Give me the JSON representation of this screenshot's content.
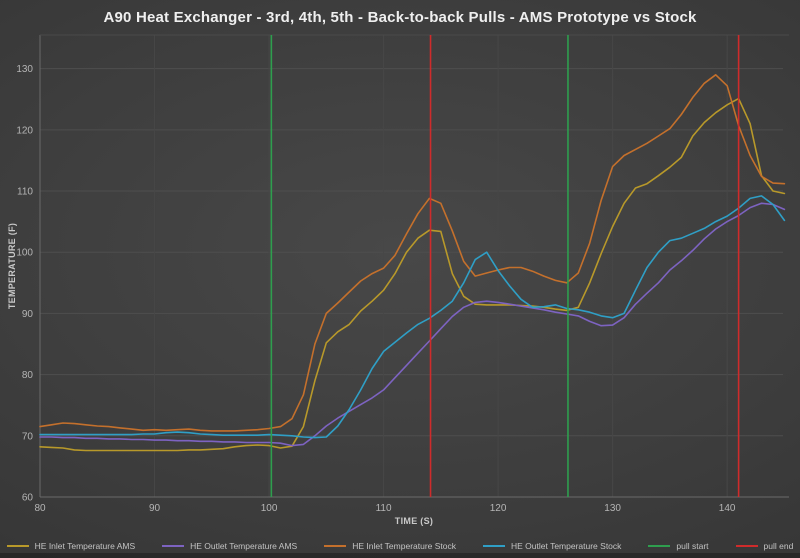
{
  "chart_data": {
    "type": "line",
    "title": "A90 Heat Exchanger - 3rd, 4th, 5th - Back-to-back Pulls - AMS Prototype vs Stock",
    "xlabel": "TIME (S)",
    "ylabel": "TEMPERATURE (F)",
    "xlim": [
      80,
      145.4
    ],
    "ylim": [
      60,
      135.5
    ],
    "x_ticks": [
      80,
      90,
      100,
      110,
      120,
      130,
      140
    ],
    "y_ticks": [
      60,
      70,
      80,
      90,
      100,
      110,
      120,
      130
    ],
    "grid": true,
    "legend_position": "bottom",
    "background_color": "#3d3d3d",
    "grid_color": "#4e4e4e",
    "axis_color": "#6a6a6a",
    "x": [
      80,
      81,
      82,
      83,
      84,
      85,
      86,
      87,
      88,
      89,
      90,
      91,
      92,
      93,
      94,
      95,
      96,
      97,
      98,
      99,
      100,
      101,
      102,
      103,
      104,
      105,
      106,
      107,
      108,
      109,
      110,
      111,
      112,
      113,
      114,
      115,
      116,
      117,
      118,
      119,
      120,
      121,
      122,
      123,
      124,
      125,
      126,
      127,
      128,
      129,
      130,
      131,
      132,
      133,
      134,
      135,
      136,
      137,
      138,
      139,
      140,
      141,
      142,
      143,
      144,
      145
    ],
    "series": [
      {
        "name": "HE Inlet Temperature AMS",
        "color": "#b8992a",
        "values": [
          68.2,
          68.1,
          68.0,
          67.7,
          67.6,
          67.6,
          67.6,
          67.6,
          67.6,
          67.6,
          67.6,
          67.6,
          67.6,
          67.7,
          67.7,
          67.8,
          67.9,
          68.2,
          68.4,
          68.5,
          68.4,
          68.0,
          68.3,
          71.5,
          79.0,
          85.2,
          87.0,
          88.2,
          90.4,
          92.0,
          93.8,
          96.5,
          100.0,
          102.3,
          103.6,
          103.4,
          96.5,
          92.8,
          91.5,
          91.4,
          91.4,
          91.4,
          91.3,
          91.2,
          91.0,
          90.7,
          90.5,
          91.0,
          95.0,
          99.8,
          104.2,
          108.0,
          110.5,
          111.2,
          112.5,
          113.9,
          115.5,
          119.0,
          121.2,
          122.8,
          124.1,
          125.1,
          121.0,
          112.5,
          110.0,
          109.6
        ]
      },
      {
        "name": "HE Outlet Temperature AMS",
        "color": "#7d63c1",
        "values": [
          69.8,
          69.8,
          69.7,
          69.7,
          69.6,
          69.6,
          69.5,
          69.5,
          69.4,
          69.4,
          69.3,
          69.3,
          69.2,
          69.2,
          69.1,
          69.1,
          69.0,
          69.0,
          68.9,
          68.9,
          68.9,
          68.8,
          68.4,
          68.6,
          70.0,
          71.6,
          72.9,
          74.0,
          75.1,
          76.2,
          77.5,
          79.5,
          81.5,
          83.5,
          85.5,
          87.5,
          89.5,
          91.0,
          91.8,
          92.0,
          91.8,
          91.5,
          91.2,
          90.9,
          90.6,
          90.2,
          89.9,
          89.6,
          88.7,
          88.0,
          88.1,
          89.3,
          91.5,
          93.3,
          95.0,
          97.1,
          98.6,
          100.3,
          102.2,
          103.8,
          105.0,
          106.0,
          107.3,
          108.0,
          107.8,
          107.0
        ]
      },
      {
        "name": "HE Inlet Temperature Stock",
        "color": "#c4702c",
        "values": [
          71.5,
          71.8,
          72.1,
          72.0,
          71.8,
          71.6,
          71.5,
          71.3,
          71.1,
          70.9,
          71.0,
          70.9,
          71.0,
          71.1,
          70.9,
          70.8,
          70.8,
          70.8,
          70.9,
          71.0,
          71.2,
          71.5,
          72.8,
          76.7,
          85.0,
          90.0,
          91.7,
          93.5,
          95.3,
          96.5,
          97.4,
          99.5,
          103.0,
          106.3,
          108.8,
          108.0,
          103.5,
          98.5,
          96.1,
          96.6,
          97.1,
          97.5,
          97.5,
          96.9,
          96.1,
          95.4,
          95.0,
          96.6,
          101.5,
          108.5,
          114.0,
          115.8,
          116.8,
          117.8,
          119.0,
          120.2,
          122.5,
          125.3,
          127.6,
          129.0,
          127.2,
          120.7,
          115.8,
          112.4,
          111.3,
          111.2
        ]
      },
      {
        "name": "HE Outlet Temperature Stock",
        "color": "#2f9fc6",
        "values": [
          70.2,
          70.2,
          70.2,
          70.2,
          70.2,
          70.2,
          70.2,
          70.2,
          70.2,
          70.3,
          70.3,
          70.5,
          70.6,
          70.5,
          70.3,
          70.2,
          70.1,
          70.1,
          70.1,
          70.1,
          70.2,
          70.1,
          70.0,
          69.8,
          69.7,
          69.8,
          71.6,
          74.3,
          77.5,
          81.0,
          83.8,
          85.3,
          86.8,
          88.2,
          89.2,
          90.5,
          92.0,
          95.0,
          98.8,
          100.0,
          97.0,
          94.5,
          92.3,
          91.0,
          91.1,
          91.4,
          90.8,
          90.6,
          90.2,
          89.6,
          89.3,
          90.0,
          93.8,
          97.5,
          100.0,
          101.9,
          102.3,
          103.1,
          103.9,
          105.0,
          105.9,
          107.2,
          108.8,
          109.2,
          107.8,
          105.2
        ]
      }
    ],
    "vlines": [
      {
        "name": "pull start",
        "color": "#2e9e4e",
        "x": [
          100.2,
          126.1
        ]
      },
      {
        "name": "pull end",
        "color": "#cf2b2b",
        "x": [
          114.1,
          141.0
        ]
      }
    ]
  }
}
